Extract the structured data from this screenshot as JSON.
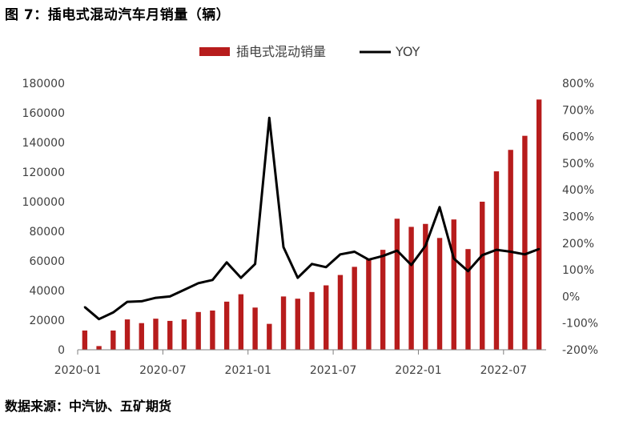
{
  "figure_title": "图 7：插电式混动汽车月销量（辆）",
  "source": "数据来源：中汽协、五矿期货",
  "colors": {
    "bar": "#b71c1c",
    "line": "#000000",
    "axis": "#7f7f7f",
    "text": "#404040"
  },
  "chart_data": {
    "type": "bar",
    "legend_position": "top-center",
    "grid": false,
    "x": [
      "2020-01",
      "2020-02",
      "2020-03",
      "2020-04",
      "2020-05",
      "2020-06",
      "2020-07",
      "2020-08",
      "2020-09",
      "2020-10",
      "2020-11",
      "2020-12",
      "2021-01",
      "2021-02",
      "2021-03",
      "2021-04",
      "2021-05",
      "2021-06",
      "2021-07",
      "2021-08",
      "2021-09",
      "2021-10",
      "2021-11",
      "2021-12",
      "2022-01",
      "2022-02",
      "2022-03",
      "2022-04",
      "2022-05",
      "2022-06",
      "2022-07",
      "2022-08",
      "2022-09"
    ],
    "x_tick_labels": [
      "2020-01",
      "2020-07",
      "2021-01",
      "2021-07",
      "2022-01",
      "2022-07"
    ],
    "series": [
      {
        "name": "插电式混动销量",
        "type": "bar",
        "axis": "left",
        "values": [
          13000,
          2500,
          13000,
          20500,
          18000,
          21000,
          19500,
          20500,
          25500,
          26500,
          32500,
          37500,
          28500,
          17500,
          36000,
          34500,
          39000,
          43500,
          50500,
          56000,
          61500,
          67500,
          88500,
          83000,
          85000,
          75500,
          88000,
          68000,
          100000,
          120500,
          135000,
          144500,
          169000
        ]
      },
      {
        "name": "YOY",
        "type": "line",
        "axis": "right",
        "values": [
          -40,
          -85,
          -60,
          -20,
          -18,
          -5,
          0,
          25,
          50,
          62,
          128,
          70,
          122,
          670,
          185,
          70,
          122,
          110,
          158,
          168,
          138,
          152,
          172,
          118,
          190,
          335,
          142,
          95,
          155,
          175,
          168,
          158,
          178
        ]
      }
    ],
    "y_left": {
      "range": [
        0,
        180000
      ],
      "ticks": [
        0,
        20000,
        40000,
        60000,
        80000,
        100000,
        120000,
        140000,
        160000,
        180000
      ]
    },
    "y_right": {
      "range": [
        -200,
        800
      ],
      "unit": "%",
      "ticks": [
        -200,
        -100,
        0,
        100,
        200,
        300,
        400,
        500,
        600,
        700,
        800
      ]
    }
  }
}
